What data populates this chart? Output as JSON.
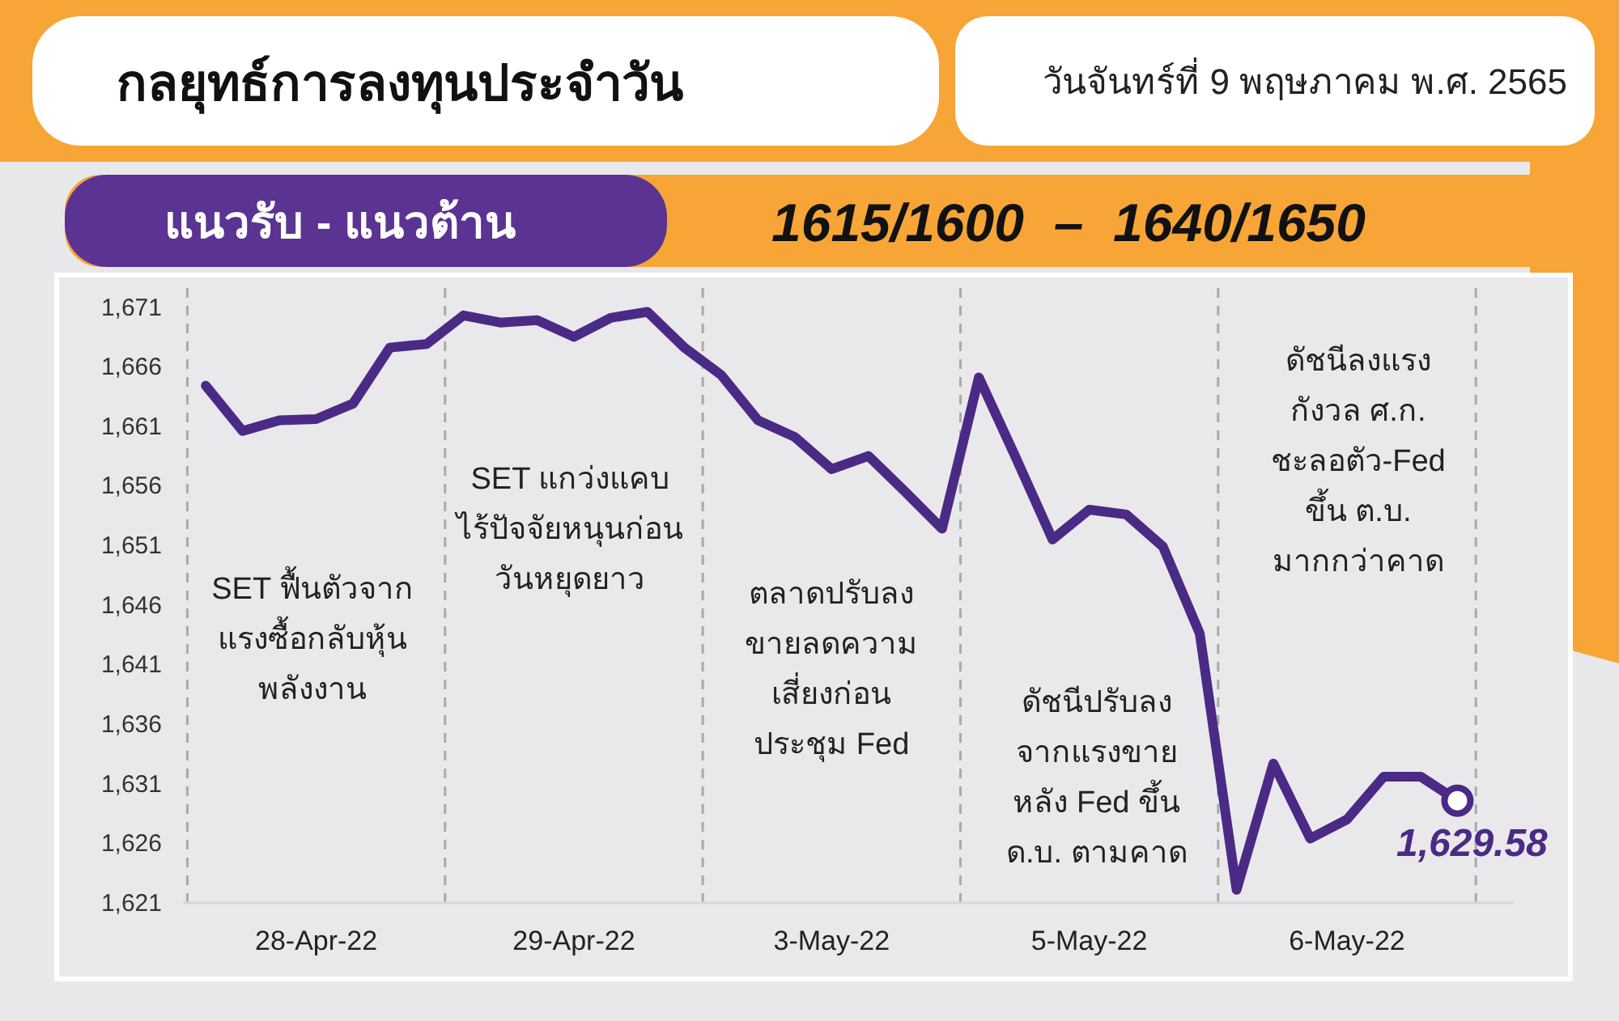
{
  "chart_data": {
    "type": "line",
    "title": "กลยุทธ์การลงทุนประจำวัน",
    "subtitle": "วันจันทร์ที่ 9 พฤษภาคม พ.ศ. 2565",
    "annotations": [
      "แนวรับ - แนวต้าน",
      "1615/1600  –  1640/1650",
      "SET ฟื้นตัวจาก\nแรงซื้อกลับหุ้น\nพลังงาน",
      "SET แกว่งแคบ\nไร้ปัจจัยหนุนก่อน\nวันหยุดยาว",
      "ตลาดปรับลง\nขายลดความ\nเสี่ยงก่อน\nประชุม Fed",
      "ดัชนีปรับลง\nจากแรงขาย\nหลัง Fed ขึ้น\nด.บ. ตามคาด",
      "ดัชนีลงแรง\nกังวล ศ.ก.\nชะลอตัว-Fed\nขึ้น ต.บ.\nมากกว่าคาด"
    ],
    "categories": [
      null,
      null,
      null,
      "28-Apr-22",
      null,
      null,
      null,
      null,
      null,
      null,
      "29-Apr-22",
      null,
      null,
      null,
      null,
      null,
      null,
      "3-May-22",
      null,
      null,
      null,
      null,
      null,
      null,
      "5-May-22",
      null,
      null,
      null,
      null,
      null,
      null,
      "6-May-22",
      null,
      null,
      null
    ],
    "series": [
      {
        "color": "#4b2a86",
        "values": [
          1664.4,
          1660.6,
          1661.5,
          1661.6,
          1662.9,
          1667.6,
          1667.9,
          1670.3,
          1669.7,
          1669.9,
          1668.5,
          1670.1,
          1670.6,
          1667.6,
          1665.3,
          1661.5,
          1660.1,
          1657.4,
          1658.5,
          1655.5,
          1652.4,
          1665.1,
          1658.4,
          1651.5,
          1654.0,
          1653.6,
          1650.9,
          1643.6,
          1622.1,
          1632.7,
          1626.4,
          1628.0,
          1631.6,
          1631.6,
          1629.58
        ],
        "value_labels": [
          null,
          null,
          null,
          null,
          null,
          null,
          null,
          null,
          null,
          null,
          null,
          null,
          null,
          null,
          null,
          null,
          null,
          null,
          null,
          null,
          null,
          null,
          null,
          null,
          null,
          null,
          null,
          null,
          null,
          null,
          null,
          null,
          null,
          null,
          "1,629.58"
        ]
      }
    ],
    "ylim": [
      1621,
      1672.6
    ],
    "yticks": [
      {
        "value": 1621,
        "label": "1,621"
      },
      {
        "value": 1626,
        "label": "1,626"
      },
      {
        "value": 1631,
        "label": "1,631"
      },
      {
        "value": 1636,
        "label": "1,636"
      },
      {
        "value": 1641,
        "label": "1,641"
      },
      {
        "value": 1646,
        "label": "1,646"
      },
      {
        "value": 1651,
        "label": "1,651"
      },
      {
        "value": 1656,
        "label": "1,656"
      },
      {
        "value": 1661,
        "label": "1,661"
      },
      {
        "value": 1666,
        "label": "1,666"
      },
      {
        "value": 1671,
        "label": "1,671"
      }
    ],
    "grid": false,
    "line_style": "solid"
  }
}
